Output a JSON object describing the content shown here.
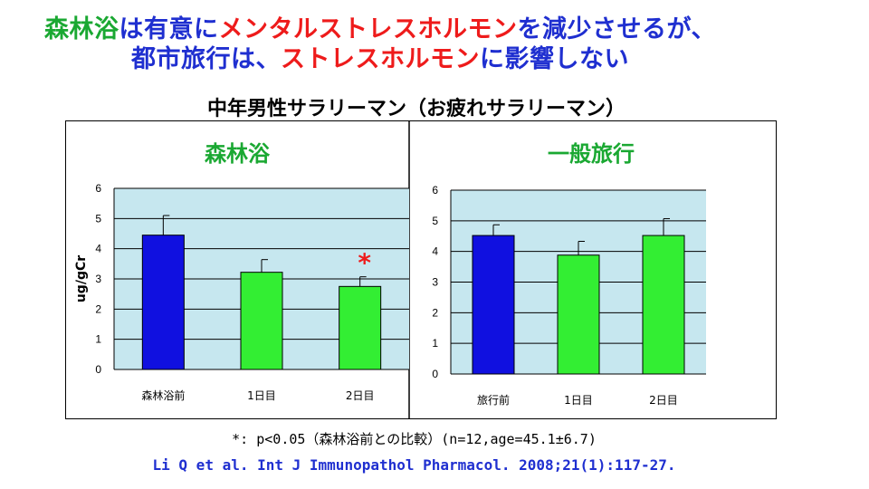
{
  "header": {
    "line1": [
      {
        "text": "森林浴",
        "color": "green"
      },
      {
        "text": "は有意に",
        "color": "blue"
      },
      {
        "text": "メンタルストレスホルモン",
        "color": "red"
      },
      {
        "text": "を減少させるが、",
        "color": "blue"
      }
    ],
    "line2": [
      {
        "text": "都市旅行は、",
        "color": "blue"
      },
      {
        "text": "ストレスホルモン",
        "color": "red"
      },
      {
        "text": "に影響しない",
        "color": "blue"
      }
    ]
  },
  "subtitle": "中年男性サラリーマン（お疲れサラリーマン）",
  "colors": {
    "pre_bar": "#1010e0",
    "post_bar": "#33ee33",
    "plot_bg": "#c6e7ef",
    "panel_title": "#1aa832",
    "star": "#ee1b1b"
  },
  "chart_data": [
    {
      "type": "bar",
      "title": "森林浴",
      "ylabel": "ug/gCr",
      "ylim": [
        0,
        6
      ],
      "yticks": [
        "0",
        "1",
        "2",
        "3",
        "4",
        "5",
        "6"
      ],
      "categories": [
        "森林浴前",
        "1日目",
        "2日目"
      ],
      "values": [
        4.45,
        3.22,
        2.75
      ],
      "errors": [
        0.65,
        0.42,
        0.32
      ],
      "significant": [
        false,
        false,
        true
      ],
      "significance_label": "*"
    },
    {
      "type": "bar",
      "title": "一般旅行",
      "ylabel": "",
      "ylim": [
        0,
        6
      ],
      "yticks": [
        "0",
        "1",
        "2",
        "3",
        "4",
        "5",
        "6"
      ],
      "categories": [
        "旅行前",
        "1日目",
        "2日目"
      ],
      "values": [
        4.52,
        3.88,
        4.52
      ],
      "errors": [
        0.35,
        0.45,
        0.55
      ],
      "significant": [
        false,
        false,
        false
      ],
      "significance_label": ""
    }
  ],
  "footnote": "*: p<0.05（森林浴前との比較）(n=12,age=45.1±6.7)",
  "citation": "Li Q et al. Int J Immunopathol Pharmacol. 2008;21(1):117-27."
}
